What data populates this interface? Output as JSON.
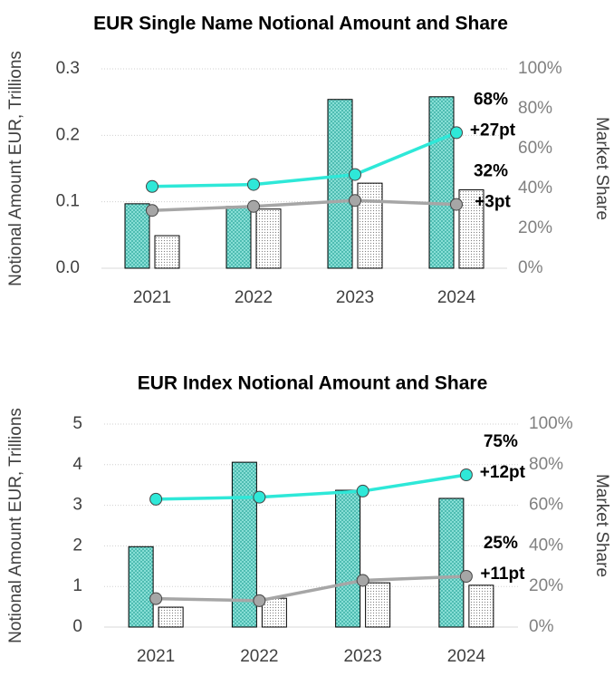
{
  "chart_data": [
    {
      "type": "combo",
      "title": "EUR Single Name Notional Amount and Share",
      "ylabel": "Notional Amount  EUR, Trillions",
      "y2label": "Market Share",
      "categories": [
        "2021",
        "2022",
        "2023",
        "2024"
      ],
      "ylim": [
        0,
        0.3
      ],
      "yticks": [
        {
          "value": 0,
          "label": "0.0"
        },
        0.1,
        0.2,
        0.3
      ],
      "y2lim": [
        0,
        100
      ],
      "y2ticks": [
        {
          "value": 0,
          "label": "0%"
        },
        {
          "value": 20,
          "label": "20%"
        },
        {
          "value": 40,
          "label": "40%"
        },
        {
          "value": 60,
          "label": "60%"
        },
        {
          "value": 80,
          "label": "80%"
        },
        {
          "value": 100,
          "label": "100%"
        }
      ],
      "grid": true,
      "series": [
        {
          "type": "bar",
          "pattern": "crosshatch",
          "color": "#7fdcd2",
          "values": [
            0.097,
            0.093,
            0.254,
            0.258
          ]
        },
        {
          "type": "bar",
          "pattern": "dots",
          "color": "#ffffff",
          "values": [
            0.049,
            0.089,
            0.128,
            0.118
          ]
        },
        {
          "type": "line",
          "axis": "y2",
          "color": "#2ee8d8",
          "values": [
            41,
            42,
            47,
            68
          ]
        },
        {
          "type": "line",
          "axis": "y2",
          "color": "#a6a6a6",
          "values": [
            29,
            31,
            34,
            32
          ]
        }
      ],
      "annotations": [
        "68%",
        "+27pt",
        "32%",
        "+3pt"
      ]
    },
    {
      "type": "combo",
      "title": "EUR Index Notional Amount and Share",
      "ylabel": "Notional Amount EUR, Trillions",
      "y2label": "Market Share",
      "categories": [
        "2021",
        "2022",
        "2023",
        "2024"
      ],
      "ylim": [
        0,
        5
      ],
      "yticks": [
        0,
        1,
        2,
        3,
        4,
        5
      ],
      "y2lim": [
        0,
        100
      ],
      "y2ticks": [
        {
          "value": 0,
          "label": "0%"
        },
        {
          "value": 20,
          "label": "20%"
        },
        {
          "value": 40,
          "label": "40%"
        },
        {
          "value": 60,
          "label": "60%"
        },
        {
          "value": 80,
          "label": "80%"
        },
        {
          "value": 100,
          "label": "100%"
        }
      ],
      "grid": true,
      "series": [
        {
          "type": "bar",
          "pattern": "crosshatch",
          "color": "#7fdcd2",
          "values": [
            1.98,
            4.06,
            3.37,
            3.17
          ]
        },
        {
          "type": "bar",
          "pattern": "dots",
          "color": "#ffffff",
          "values": [
            0.49,
            0.71,
            1.09,
            1.03
          ]
        },
        {
          "type": "line",
          "axis": "y2",
          "color": "#2ee8d8",
          "values": [
            63,
            64,
            67,
            75
          ]
        },
        {
          "type": "line",
          "axis": "y2",
          "color": "#a6a6a6",
          "values": [
            14,
            13,
            23,
            25
          ]
        }
      ],
      "annotations": [
        "75%",
        "+12pt",
        "25%",
        "+11pt"
      ]
    }
  ]
}
